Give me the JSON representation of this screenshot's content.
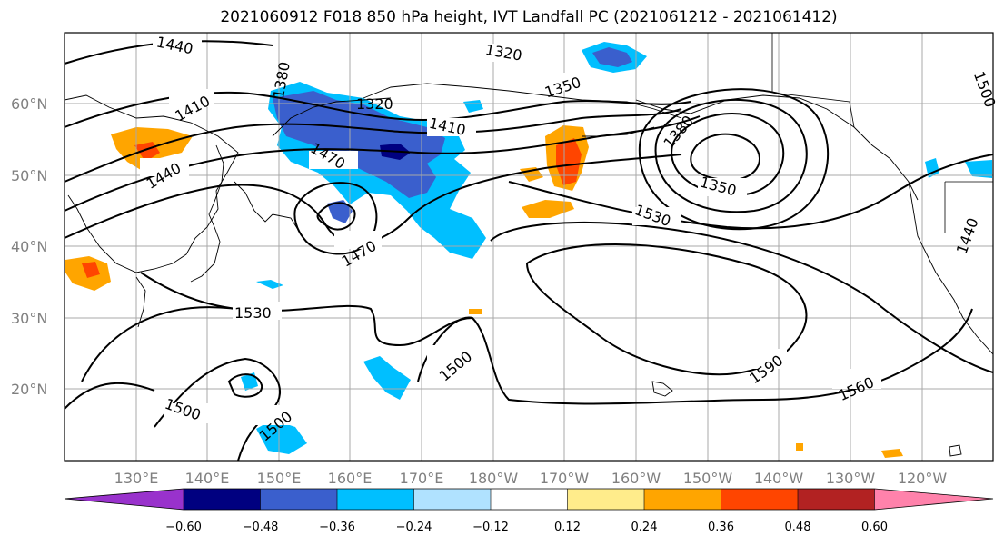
{
  "title": "2021060912 F018 850 hPa height, IVT Landfall PC (2021061212 - 2021061412)",
  "map": {
    "lat_labels": [
      "60°N",
      "50°N",
      "40°N",
      "30°N",
      "20°N"
    ],
    "lon_labels": [
      "130°E",
      "140°E",
      "150°E",
      "160°E",
      "170°E",
      "180°W",
      "170°W",
      "160°W",
      "150°W",
      "140°W",
      "130°W",
      "120°W"
    ],
    "contour_labels": [
      "1440",
      "1410",
      "1380",
      "1320",
      "1320",
      "1350",
      "1410",
      "1380",
      "1440",
      "1470",
      "1470",
      "1350",
      "1530",
      "1530",
      "1500",
      "1500",
      "1500",
      "1590",
      "1560",
      "1500",
      "1440"
    ],
    "colors": {
      "neg_strong": "#000080",
      "neg_mid": "#3a5fcd",
      "neg_weak": "#00bfff",
      "neg_faint": "#b0e2ff",
      "pos_faint": "#ffec8b",
      "pos_weak": "#ffa500",
      "pos_mid": "#ff4500",
      "pos_strong": "#b22222",
      "max": "#ff82ab",
      "min": "#9932cc"
    }
  },
  "colorbar": {
    "ticks": [
      "−0.60",
      "−0.48",
      "−0.36",
      "−0.24",
      "−0.12",
      "0.12",
      "0.24",
      "0.36",
      "0.48",
      "0.60"
    ],
    "colors": [
      "#9932cc",
      "#000080",
      "#3a5fcd",
      "#00bfff",
      "#b0e2ff",
      "#ffffff",
      "#ffec8b",
      "#ffa500",
      "#ff4500",
      "#b22222",
      "#ff82ab"
    ]
  }
}
